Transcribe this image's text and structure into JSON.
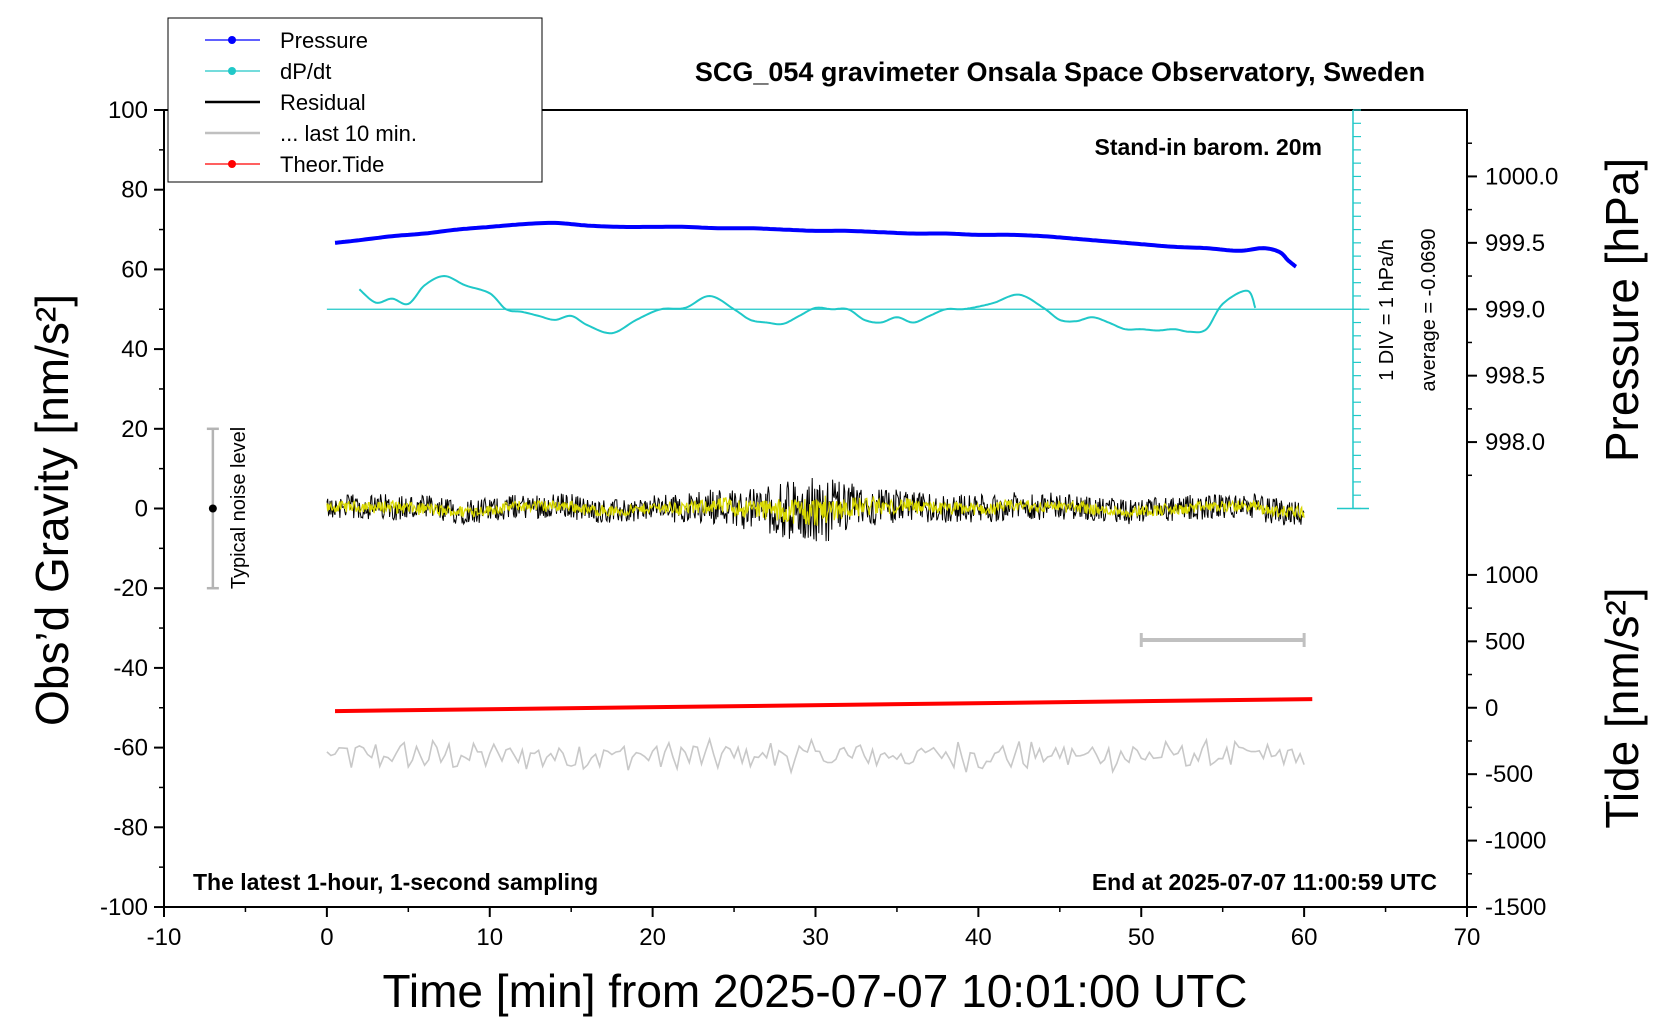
{
  "chart_data": {
    "type": "line",
    "title": "SCG_054 gravimeter Onsala Space Observatory, Sweden",
    "xlabel": "Time [min] from 2025-07-07 10:01:00 UTC",
    "ylabel_left": "Obs’d Gravity [nm/s²]",
    "ylabel_right_pressure": "Pressure [hPa]",
    "ylabel_right_tide": "Tide [nm/s²]",
    "xlim": [
      -10,
      70
    ],
    "ylim_left": [
      -100,
      100
    ],
    "ylim_pressure": [
      997.5,
      1000.5
    ],
    "ylim_tide": [
      -1500,
      1000
    ],
    "x_ticks": [
      "-10",
      "0",
      "10",
      "20",
      "30",
      "40",
      "50",
      "60",
      "70"
    ],
    "y_ticks_left": [
      "100",
      "80",
      "60",
      "40",
      "20",
      "0",
      "-20",
      "-40",
      "-60",
      "-80",
      "-100"
    ],
    "pressure_ticks": [
      "1000.0",
      "999.5",
      "999.0",
      "998.5",
      "998.0"
    ],
    "tide_ticks": [
      "1000",
      "500",
      "0",
      "-500",
      "-1000",
      "-1500"
    ],
    "annotations": {
      "barometer": "Stand-in barom. 20m",
      "div_scale": "1 DIV = 1 hPa/h",
      "average": "average = -0.0690",
      "noise": "Typical noise level",
      "sampling": "The latest 1-hour, 1-second sampling",
      "end": "End at 2025-07-07 11:00:59 UTC"
    },
    "legend": [
      {
        "name": "Pressure",
        "color": "#0000ff",
        "marker": true
      },
      {
        "name": "dP/dt",
        "color": "#20c8c8",
        "marker": true
      },
      {
        "name": "Residual",
        "color": "#000000",
        "marker": false
      },
      {
        "name": "... last 10 min.",
        "color": "#c0c0c0",
        "marker": false
      },
      {
        "name": "Theor.Tide",
        "color": "#ff0000",
        "marker": true
      }
    ],
    "series": {
      "pressure": {
        "units": "hPa",
        "x": [
          0.5,
          2,
          4,
          6,
          8,
          10,
          12,
          14,
          16,
          18,
          20,
          22,
          24,
          26,
          28,
          30,
          32,
          34,
          36,
          38,
          40,
          42,
          44,
          46,
          48,
          50,
          52,
          54,
          56,
          57.5,
          58.5,
          59,
          59.5
        ],
        "y": [
          999.5,
          999.52,
          999.55,
          999.57,
          999.6,
          999.62,
          999.64,
          999.65,
          999.63,
          999.62,
          999.62,
          999.62,
          999.61,
          999.61,
          999.6,
          999.59,
          999.59,
          999.58,
          999.57,
          999.57,
          999.56,
          999.56,
          999.55,
          999.53,
          999.51,
          999.49,
          999.47,
          999.46,
          999.44,
          999.46,
          999.43,
          999.37,
          999.32
        ]
      },
      "dpdt": {
        "units": "hPa/h",
        "x": [
          2,
          3,
          4,
          5,
          6,
          7.2,
          8.5,
          10,
          11,
          12,
          13,
          14,
          15,
          16,
          17.5,
          19,
          20.5,
          22,
          23.5,
          25,
          26,
          27,
          28,
          29,
          30,
          31,
          32,
          33,
          34,
          35,
          36,
          37,
          38,
          39,
          40,
          41,
          42.5,
          44,
          45,
          46,
          47,
          48,
          49,
          50,
          51,
          52,
          53,
          54,
          55,
          56.5,
          57
        ],
        "y": [
          1.5,
          0.5,
          0.8,
          0.4,
          1.8,
          2.5,
          1.8,
          1.2,
          0,
          -0.2,
          -0.5,
          -0.8,
          -0.5,
          -1.2,
          -1.8,
          -0.8,
          0,
          0.1,
          1.0,
          0,
          -0.8,
          -1.0,
          -1.1,
          -0.5,
          0.1,
          0,
          0,
          -0.8,
          -1.0,
          -0.6,
          -1.0,
          -0.5,
          0,
          0,
          0.2,
          0.5,
          1.1,
          0.1,
          -0.8,
          -0.9,
          -0.6,
          -1.0,
          -1.5,
          -1.5,
          -1.6,
          -1.5,
          -1.7,
          -1.5,
          0.4,
          1.4,
          0.1
        ]
      },
      "residual": {
        "units": "nm/s²",
        "description_range": [
          0,
          60
        ],
        "envelope_x": [
          0,
          5,
          10,
          15,
          20,
          24,
          27,
          30,
          32,
          35,
          40,
          45,
          50,
          55,
          60
        ],
        "envelope_amp": [
          3,
          3.5,
          3,
          3.2,
          3,
          4.5,
          6,
          9,
          6,
          4,
          3.5,
          3.2,
          3.2,
          3.2,
          3.5
        ]
      },
      "residual_last10": {
        "units": "nm/s²",
        "description_range": [
          0,
          60
        ],
        "color": "#d8d800"
      },
      "theor_tide": {
        "units": "nm/s²",
        "x": [
          0.5,
          60.5
        ],
        "y": [
          -25,
          65
        ]
      },
      "gray_band": {
        "baseline": -62,
        "range": [
          0,
          60
        ]
      },
      "noise_bar": {
        "x": -7,
        "y_range": [
          -20,
          20
        ],
        "center": 0
      },
      "scale_bar": {
        "x_range": [
          50,
          60
        ],
        "y": -33
      }
    }
  }
}
